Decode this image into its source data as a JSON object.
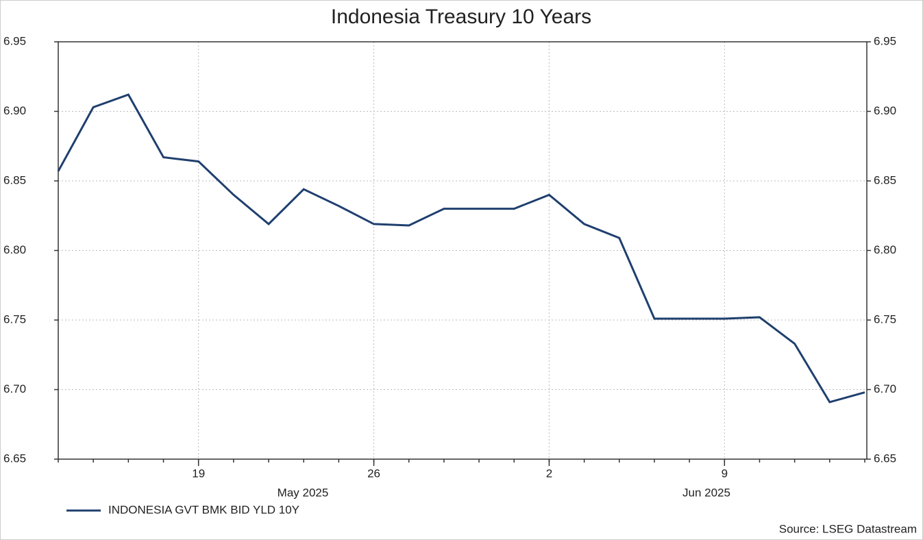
{
  "chart_data": {
    "type": "line",
    "title": "Indonesia Treasury 10 Years",
    "categories": [
      null,
      null,
      null,
      null,
      "19",
      null,
      null,
      null,
      null,
      "26",
      null,
      null,
      null,
      null,
      "2",
      null,
      null,
      null,
      null,
      "9",
      null,
      null,
      null,
      null
    ],
    "month_labels": [
      "May 2025",
      "Jun 2025"
    ],
    "series": [
      {
        "name": "INDONESIA GVT BMK BID YLD 10Y",
        "color": "#1f3f6e",
        "values": [
          6.857,
          6.903,
          6.912,
          6.867,
          6.864,
          6.84,
          6.819,
          6.844,
          6.832,
          6.819,
          6.818,
          6.83,
          6.83,
          6.83,
          6.84,
          6.819,
          6.809,
          6.751,
          6.751,
          6.751,
          6.752,
          6.733,
          6.691,
          6.698
        ]
      }
    ],
    "ylim": [
      6.65,
      6.95
    ],
    "yticks": [
      6.65,
      {
        "value": 6.7,
        "label": "6.70"
      },
      6.75,
      {
        "value": 6.8,
        "label": "6.80"
      },
      6.85,
      {
        "value": 6.9,
        "label": "6.90"
      },
      6.95
    ],
    "grid": true,
    "legend": "bottom-left",
    "source": "Source: LSEG Datastream"
  }
}
